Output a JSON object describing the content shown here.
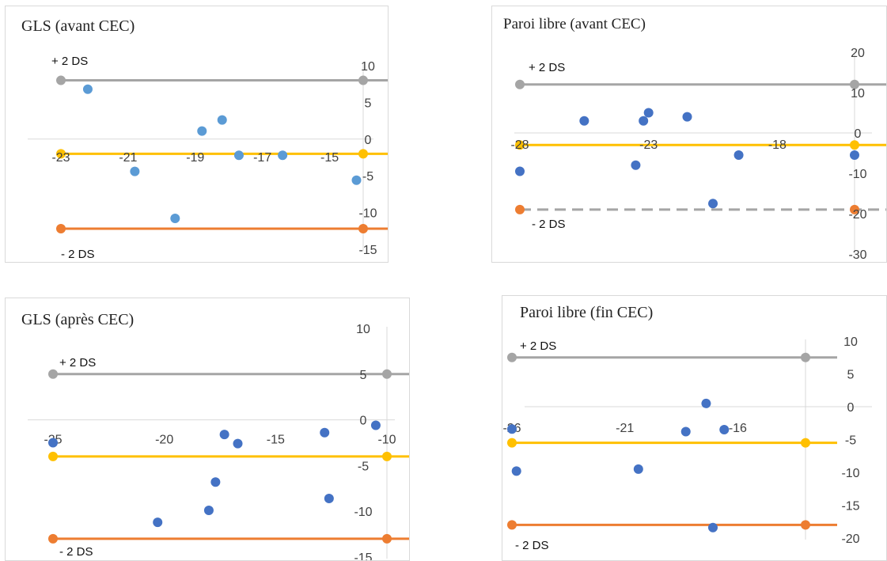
{
  "charts": [
    {
      "id": "p1",
      "type": "scatter",
      "title": "GLS (avant CEC)",
      "xlim": [
        -23,
        -14
      ],
      "ylim": [
        -15,
        10
      ],
      "xticks": [
        -23,
        -21,
        -19,
        -17,
        -15
      ],
      "yticks": [
        10,
        5,
        0,
        -5,
        -10,
        -15
      ],
      "upper_loa": 8,
      "mean_bias": -2,
      "lower_loa": -12.2,
      "upper_label": "+ 2 DS",
      "lower_label": "- 2 DS",
      "upper_style": "solid",
      "points": [
        [
          -22.2,
          6.8
        ],
        [
          -20.8,
          -4.4
        ],
        [
          -19.6,
          -10.8
        ],
        [
          -18.8,
          1.1
        ],
        [
          -18.2,
          2.6
        ],
        [
          -17.7,
          -2.2
        ],
        [
          -16.4,
          -2.2
        ],
        [
          -14.2,
          -5.6
        ]
      ],
      "colors": {
        "point": "#5b9bd5",
        "upper": "#a5a5a5",
        "mean": "#ffc000",
        "lower": "#ed7d31"
      }
    },
    {
      "id": "p2",
      "type": "scatter",
      "title": "Paroi libre (avant CEC)",
      "xlim": [
        -28,
        -15
      ],
      "ylim": [
        -30,
        20
      ],
      "xticks": [
        -28,
        -23,
        -18
      ],
      "yticks": [
        20,
        10,
        0,
        -10,
        -20,
        -30
      ],
      "upper_loa": 12,
      "mean_bias": -3,
      "lower_loa": -19,
      "upper_label": "+ 2 DS",
      "lower_label": "- 2 DS",
      "upper_style": "solid",
      "lower_style": "dashed",
      "points": [
        [
          -28,
          -9.5
        ],
        [
          -25.5,
          3
        ],
        [
          -23.5,
          -8
        ],
        [
          -23.2,
          3
        ],
        [
          -23,
          5
        ],
        [
          -21.5,
          4
        ],
        [
          -20.5,
          -17.5
        ],
        [
          -19.5,
          -5.5
        ],
        [
          -15,
          -5.5
        ]
      ],
      "colors": {
        "point": "#4472c4",
        "upper": "#a5a5a5",
        "mean": "#ffc000",
        "lower": "#ed7d31"
      }
    },
    {
      "id": "p3",
      "type": "scatter",
      "title": "GLS (après CEC)",
      "xlim": [
        -25,
        -10
      ],
      "ylim": [
        -15,
        10
      ],
      "xticks": [
        -25,
        -20,
        -15,
        -10
      ],
      "yticks": [
        10,
        5,
        0,
        -5,
        -10,
        -15
      ],
      "upper_loa": 5,
      "mean_bias": -4,
      "lower_loa": -13,
      "upper_label": "+ 2 DS",
      "lower_label": "- 2 DS",
      "upper_style": "solid",
      "points": [
        [
          -25,
          -2.5
        ],
        [
          -20.3,
          -11.2
        ],
        [
          -18,
          -9.9
        ],
        [
          -17.7,
          -6.8
        ],
        [
          -17.3,
          -1.6
        ],
        [
          -16.7,
          -2.6
        ],
        [
          -12.8,
          -1.4
        ],
        [
          -12.6,
          -8.6
        ],
        [
          -10.5,
          -0.6
        ]
      ],
      "colors": {
        "point": "#4472c4",
        "upper": "#a5a5a5",
        "mean": "#ffc000",
        "lower": "#ed7d31"
      }
    },
    {
      "id": "p4",
      "type": "scatter",
      "title": "Paroi libre (fin CEC)",
      "xlim": [
        -26,
        -13
      ],
      "ylim": [
        -20,
        10
      ],
      "xticks": [
        -26,
        -21,
        -16
      ],
      "yticks": [
        10,
        5,
        0,
        -5,
        -10,
        -15,
        -20
      ],
      "upper_loa": 7.5,
      "mean_bias": -5.5,
      "lower_loa": -18,
      "upper_label": "+ 2 DS",
      "lower_label": "- 2 DS",
      "upper_style": "solid",
      "points": [
        [
          -26,
          -3.4
        ],
        [
          -25.8,
          -9.8
        ],
        [
          -20.4,
          -9.5
        ],
        [
          -18.3,
          -3.8
        ],
        [
          -17.4,
          0.5
        ],
        [
          -17.1,
          -18.4
        ],
        [
          -16.6,
          -3.5
        ]
      ],
      "colors": {
        "point": "#4472c4",
        "upper": "#a5a5a5",
        "mean": "#ffc000",
        "lower": "#ed7d31"
      }
    }
  ]
}
